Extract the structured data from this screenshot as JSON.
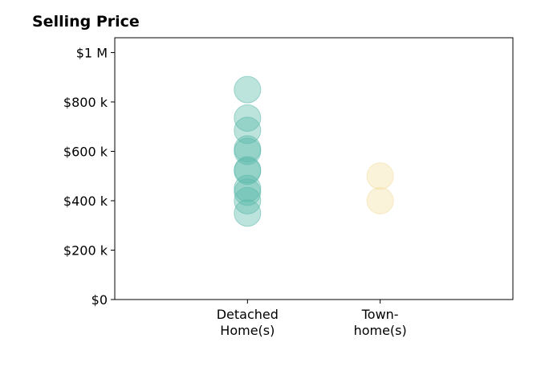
{
  "chart_data": {
    "type": "scatter",
    "title": "Selling Price",
    "categories": [
      "Detached\nHome(s)",
      "Town-\nhome(s)"
    ],
    "y_ticks": [
      {
        "value": 0,
        "label": "$0"
      },
      {
        "value": 200000,
        "label": "$200 k"
      },
      {
        "value": 400000,
        "label": "$400 k"
      },
      {
        "value": 600000,
        "label": "$600 k"
      },
      {
        "value": 800000,
        "label": "$800 k"
      },
      {
        "value": 1000000,
        "label": "$1 M"
      }
    ],
    "ylim": [
      0,
      1060000
    ],
    "xlim": [
      -1,
      2
    ],
    "grid": false,
    "series": [
      {
        "category_index": 0,
        "color": "#5ab8aa",
        "values": [
          850000,
          735000,
          685000,
          610000,
          600000,
          525000,
          520000,
          450000,
          435000,
          400000,
          350000
        ]
      },
      {
        "category_index": 1,
        "color": "#f3de9f",
        "values": [
          500000,
          400000
        ]
      }
    ]
  }
}
